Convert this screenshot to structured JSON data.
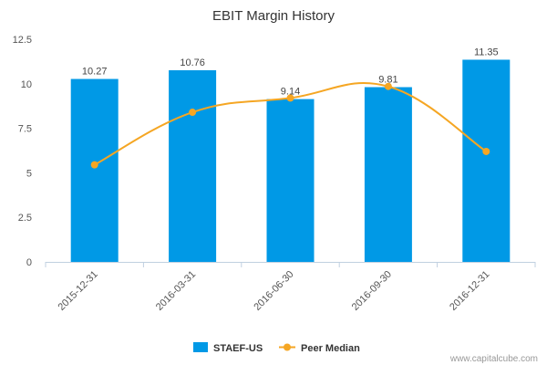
{
  "chart_data": {
    "type": "bar",
    "title": "EBIT Margin History",
    "categories": [
      "2015-12-31",
      "2016-03-31",
      "2016-06-30",
      "2016-09-30",
      "2016-12-31"
    ],
    "series": [
      {
        "name": "STAEF-US",
        "type": "bar",
        "color": "#0099e6",
        "values": [
          10.27,
          10.76,
          9.14,
          9.81,
          11.35
        ],
        "labels": [
          "10.27",
          "10.76",
          "9.14",
          "9.81",
          "11.35"
        ]
      },
      {
        "name": "Peer Median",
        "type": "line",
        "color": "#f5a623",
        "values": [
          5.45,
          8.4,
          9.2,
          9.85,
          6.2
        ]
      }
    ],
    "y_ticks": [
      "0",
      "2.5",
      "5",
      "7.5",
      "10",
      "12.5"
    ],
    "ylim": [
      0,
      12.5
    ],
    "grid": false,
    "legend": "bottom-center"
  },
  "credit": "www.capitalcube.com"
}
